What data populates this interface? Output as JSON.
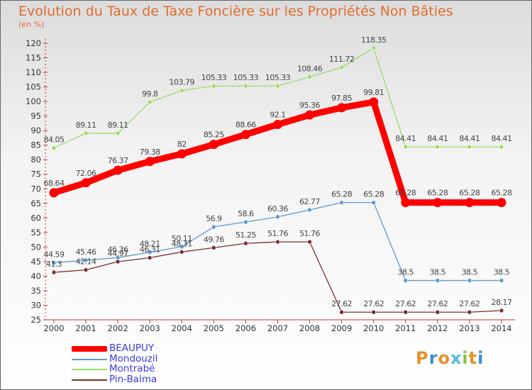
{
  "title": "Evolution du Taux de Taxe Foncière sur les Propriétés Non Bâties",
  "unit_label": "(en %)",
  "brand": "Proxiti",
  "brand_colors": [
    "#e8902a",
    "#3a8fd8",
    "#e8902a",
    "#5ab8e8",
    "#8bc53f",
    "#e8902a",
    "#3a8fd8"
  ],
  "chart_data": {
    "type": "line",
    "title": "Evolution du Taux de Taxe Foncière sur les Propriétés Non Bâties",
    "ylabel": "(en %)",
    "xlabel": "",
    "categories": [
      "2000",
      "2001",
      "2002",
      "2003",
      "2004",
      "2005",
      "2006",
      "2007",
      "2008",
      "2009",
      "2010",
      "2011",
      "2012",
      "2013",
      "2014"
    ],
    "ylim": [
      25,
      120
    ],
    "yticks": [
      25,
      30,
      35,
      40,
      45,
      50,
      55,
      60,
      65,
      70,
      75,
      80,
      85,
      90,
      95,
      100,
      105,
      110,
      115,
      120
    ],
    "grid": false,
    "legend_position": "bottom-left",
    "series": [
      {
        "name": "BEAUPUY",
        "color": "#ff0000",
        "bold": true,
        "values": [
          68.64,
          72.06,
          76.37,
          79.38,
          82,
          85.25,
          88.66,
          92.1,
          95.36,
          97.85,
          99.81,
          65.28,
          65.28,
          65.28,
          65.28
        ],
        "labels": [
          "68.64",
          "72.06",
          "76.37",
          "79.38",
          "82",
          "85.25",
          "88.66",
          "92.1",
          "95.36",
          "97.85",
          "99.81",
          "65.28",
          "65.28",
          "65.28",
          "65.28"
        ]
      },
      {
        "name": "Mondouzil",
        "color": "#5b9bd5",
        "bold": false,
        "values": [
          44.59,
          45.46,
          46.36,
          48.21,
          50.11,
          56.9,
          58.6,
          60.36,
          62.77,
          65.28,
          65.28,
          38.5,
          38.5,
          38.5,
          38.5
        ],
        "labels": [
          "44.59",
          "45.46",
          "46.36",
          "48.21",
          "50.11",
          "56.9",
          "58.6",
          "60.36",
          "62.77",
          "65.28",
          "65.28",
          "38.5",
          "38.5",
          "38.5",
          "38.5"
        ]
      },
      {
        "name": "Montrabé",
        "color": "#99dd66",
        "bold": false,
        "values": [
          84.05,
          89.11,
          89.11,
          99.8,
          103.79,
          105.33,
          105.33,
          105.33,
          108.46,
          111.72,
          118.35,
          84.41,
          84.41,
          84.41,
          84.41
        ],
        "labels": [
          "84.05",
          "89.11",
          "89.11",
          "99.8",
          "103.79",
          "105.33",
          "105.33",
          "105.33",
          "108.46",
          "111.72",
          "118.35",
          "84.41",
          "84.41",
          "84.41",
          "84.41"
        ]
      },
      {
        "name": "Pin-Balma",
        "color": "#7a2e2e",
        "bold": false,
        "values": [
          41.3,
          42.14,
          44.97,
          46.31,
          48.31,
          49.76,
          51.25,
          51.76,
          51.76,
          27.62,
          27.62,
          27.62,
          27.62,
          27.62,
          28.17
        ],
        "labels": [
          "41.3",
          "42.14",
          "44.97",
          "46.31",
          "48.31",
          "49.76",
          "51.25",
          "51.76",
          "51.76",
          "27.62",
          "27.62",
          "27.62",
          "27.62",
          "27.62",
          "28.17"
        ]
      }
    ]
  }
}
